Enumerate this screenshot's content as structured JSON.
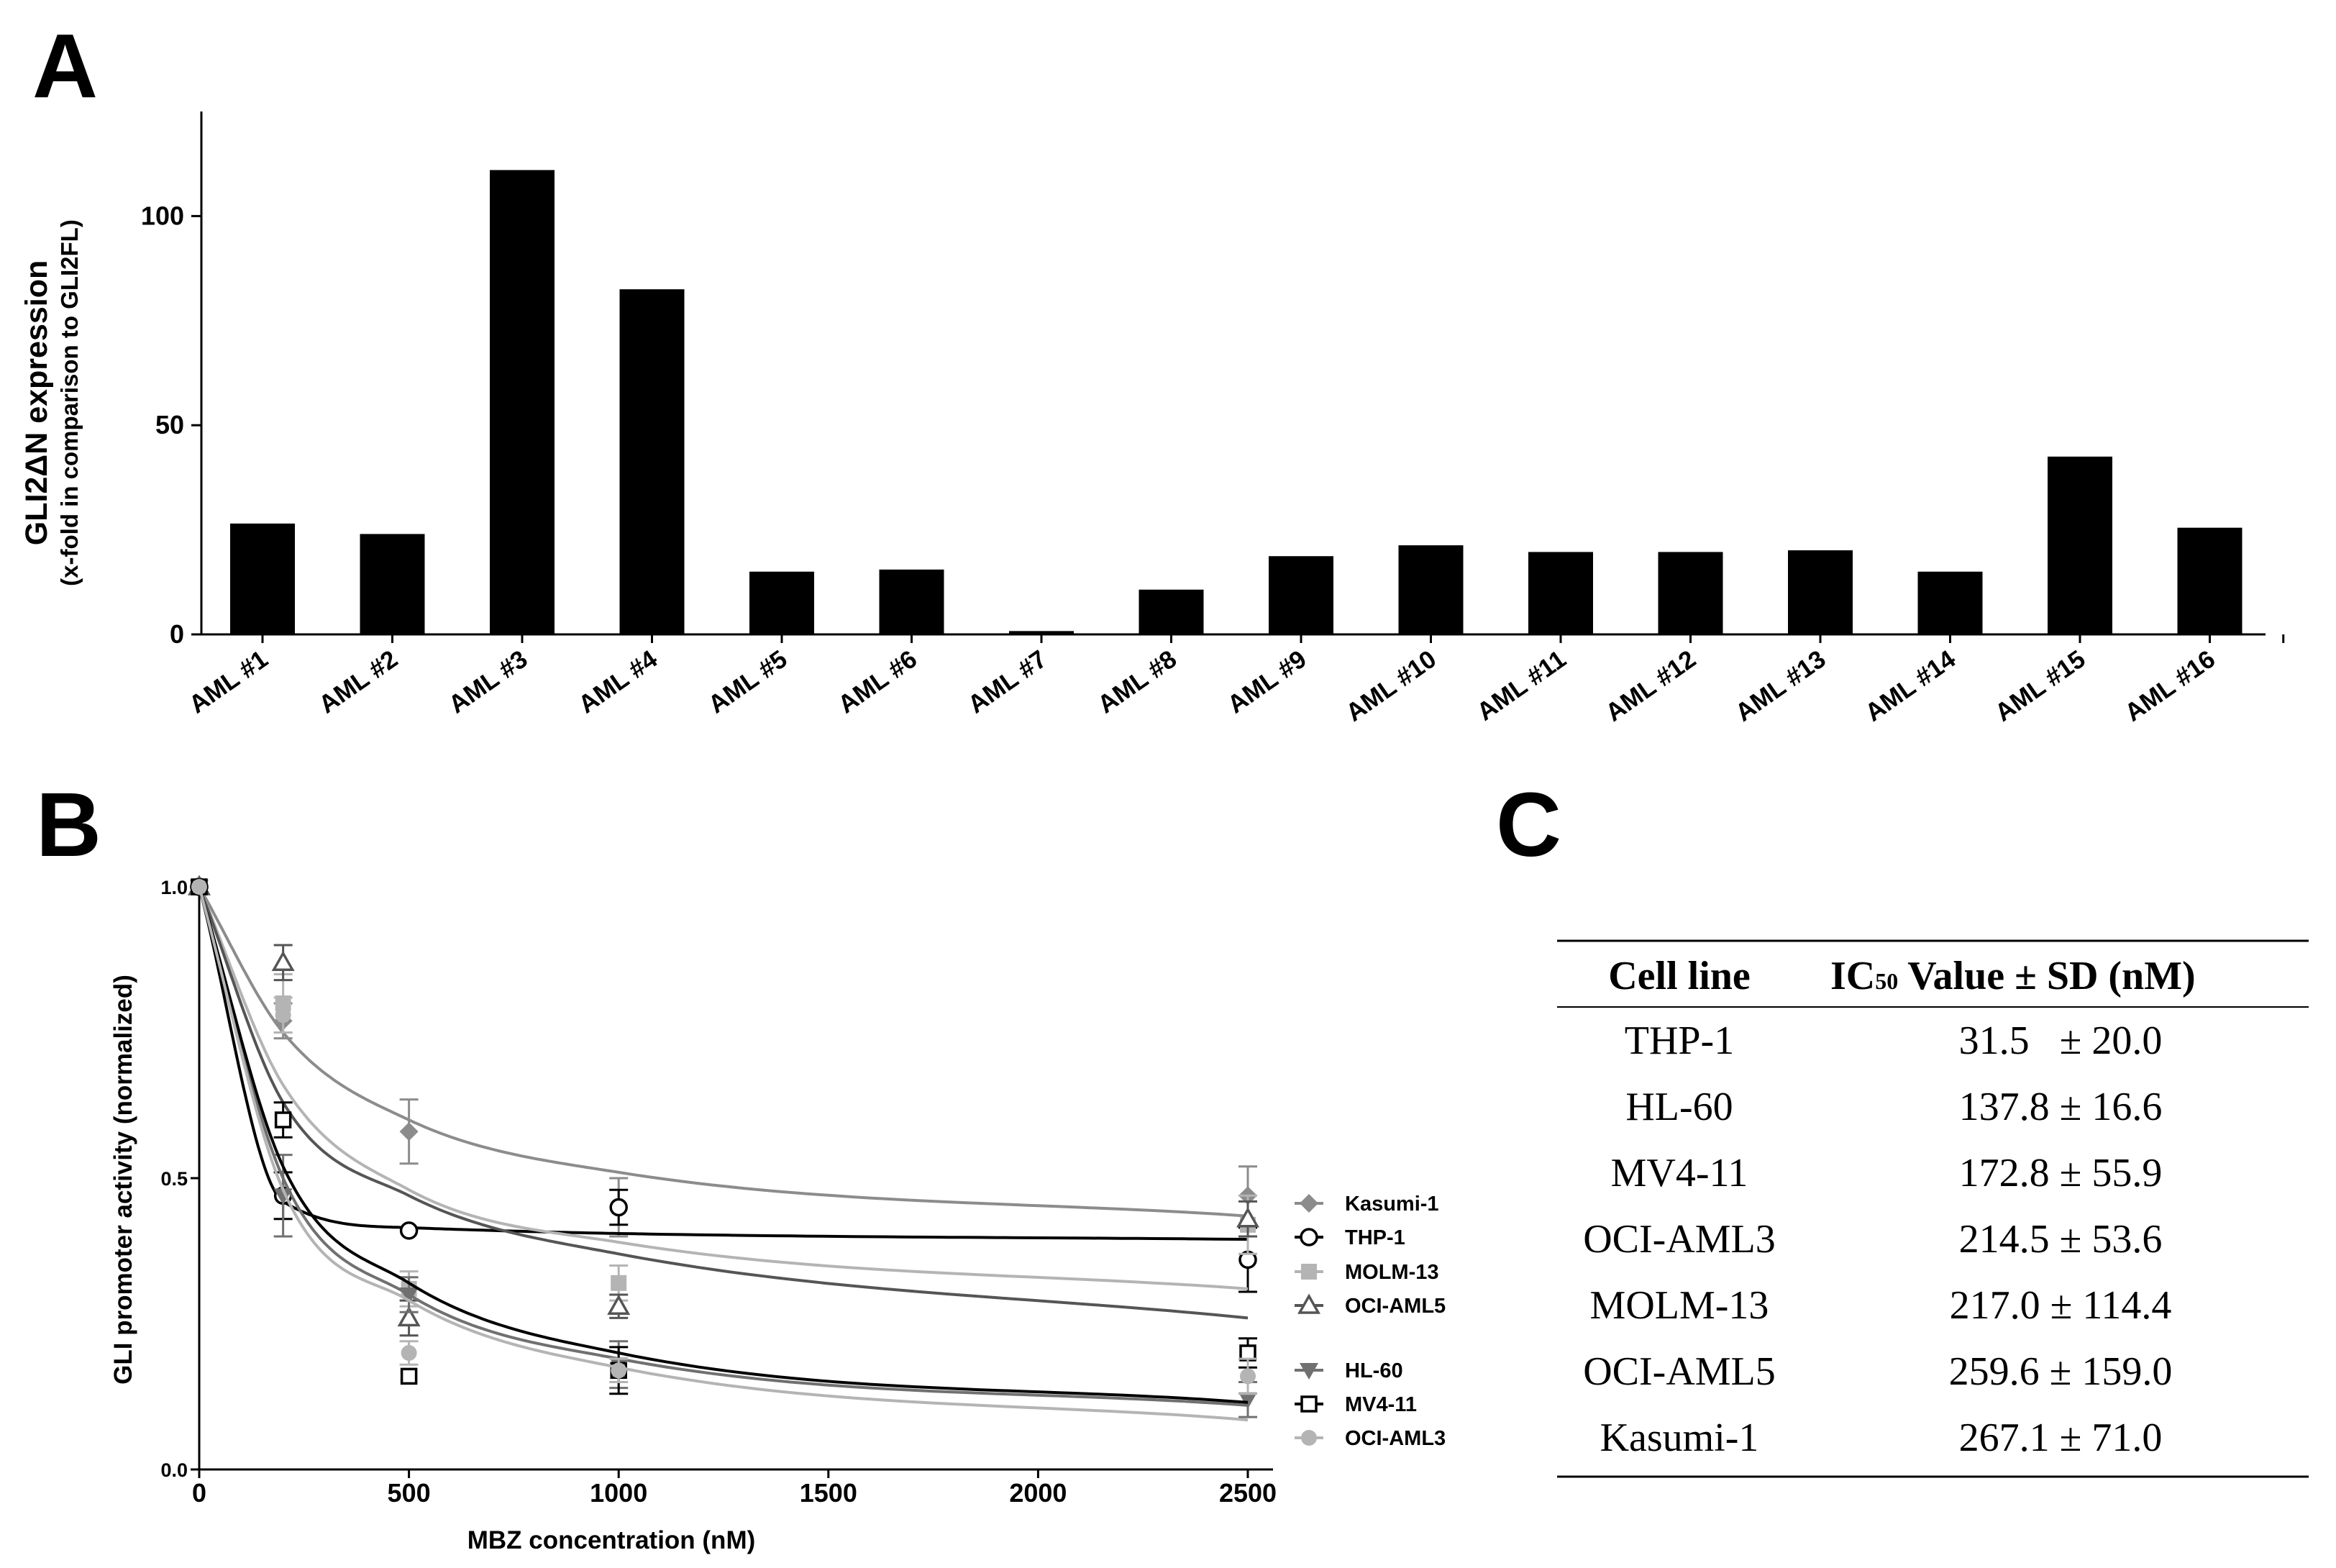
{
  "panels": {
    "a": "A",
    "b": "B",
    "c": "C"
  },
  "chart_data": [
    {
      "type": "bar",
      "title": "",
      "ylabel": "GLI2ΔN expression",
      "ylabel_sub": "(x-fold in comparison to GLI2FL)",
      "xlabel": "",
      "ylim": [
        0,
        125
      ],
      "yticks": [
        0,
        50,
        100
      ],
      "categories": [
        "AML #1",
        "AML #2",
        "AML #3",
        "AML #4",
        "AML #5",
        "AML #6",
        "AML #7",
        "AML #8",
        "AML #9",
        "AML #10",
        "AML #11",
        "AML #12",
        "AML #13",
        "AML #14",
        "AML #15",
        "AML #16"
      ],
      "values": [
        26.5,
        24,
        111,
        82.5,
        15,
        15.5,
        0.8,
        10.7,
        18.7,
        21.3,
        19.7,
        19.7,
        20.1,
        15,
        42.5,
        25.5
      ],
      "bar_color": "#000000"
    },
    {
      "type": "scatter",
      "title": "",
      "xlabel": "MBZ concentration (nM)",
      "ylabel": "GLI promoter activity (normalized)",
      "xlim": [
        0,
        2550
      ],
      "ylim": [
        0,
        1.0
      ],
      "xticks": [
        0,
        500,
        1000,
        1500,
        2000,
        2500
      ],
      "yticks": [
        0.0,
        0.5,
        1.0
      ],
      "ytick_labels": [
        "0.0",
        "0.5",
        "1.0"
      ],
      "x": [
        0,
        200,
        500,
        1000,
        2500
      ],
      "series": [
        {
          "name": "Kasumi-1",
          "marker": "diamond",
          "color": "#8c8c8c",
          "values": [
            1.0,
            0.77,
            0.58,
            0.45,
            0.47
          ],
          "errors": [
            0,
            0.03,
            0.055,
            0.05,
            0.05
          ],
          "fit": [
            1.0,
            0.75,
            0.6,
            0.51,
            0.435
          ]
        },
        {
          "name": "THP-1",
          "marker": "circle-open",
          "color": "#000000",
          "values": [
            1.0,
            0.47,
            0.41,
            0.45,
            0.36
          ],
          "errors": [
            0,
            0.04,
            0,
            0.03,
            0.055
          ],
          "fit": [
            1.0,
            0.46,
            0.415,
            0.405,
            0.395
          ]
        },
        {
          "name": "MOLM-13",
          "marker": "square",
          "color": "#b4b4b4",
          "values": [
            1.0,
            0.8,
            0.31,
            0.32,
            0.42
          ],
          "errors": [
            0,
            0.05,
            0.03,
            0.03,
            0.05
          ],
          "fit": [
            1.0,
            0.66,
            0.48,
            0.39,
            0.31
          ]
        },
        {
          "name": "OCI-AML5",
          "marker": "triangle-open",
          "color": "#555555",
          "values": [
            1.0,
            0.87,
            0.26,
            0.28,
            0.43
          ],
          "errors": [
            0,
            0.03,
            0.03,
            0.02,
            0.03
          ],
          "fit": [
            1.0,
            0.63,
            0.47,
            0.37,
            0.26
          ]
        },
        {
          "name": "HL-60",
          "marker": "triangle-down",
          "color": "#707070",
          "values": [
            1.0,
            0.47,
            0.3,
            0.18,
            0.12
          ],
          "errors": [
            0,
            0.07,
            0.03,
            0.04,
            0.03
          ],
          "fit": [
            1.0,
            0.5,
            0.3,
            0.19,
            0.11
          ]
        },
        {
          "name": "MV4-11",
          "marker": "square-open",
          "color": "#000000",
          "values": [
            1.0,
            0.6,
            0.16,
            0.17,
            0.2
          ],
          "errors": [
            0,
            0.03,
            0,
            0.04,
            0.025
          ],
          "fit": [
            1.0,
            0.52,
            0.32,
            0.2,
            0.115
          ]
        },
        {
          "name": "OCI-AML3",
          "marker": "circle",
          "color": "#b4b4b4",
          "values": [
            1.0,
            0.78,
            0.2,
            0.17,
            0.16
          ],
          "errors": [
            0,
            0.03,
            0.02,
            0.02,
            0.03
          ],
          "fit": [
            1.0,
            0.48,
            0.29,
            0.175,
            0.085
          ]
        }
      ]
    },
    {
      "type": "table",
      "columns": [
        "Cell line",
        "IC50 Value ± SD (nM)"
      ],
      "header": {
        "cell_line": "Cell line",
        "ic": "IC",
        "ic_sub": "50",
        "value": " Value ± SD (nM)"
      },
      "rows": [
        {
          "line": "THP-1",
          "value": "31.5   ± 20.0"
        },
        {
          "line": "HL-60",
          "value": "137.8 ± 16.6"
        },
        {
          "line": "MV4-11",
          "value": "172.8 ± 55.9"
        },
        {
          "line": "OCI-AML3",
          "value": "214.5 ± 53.6"
        },
        {
          "line": "MOLM-13",
          "value": "217.0 ± 114.4"
        },
        {
          "line": "OCI-AML5",
          "value": "259.6 ± 159.0"
        },
        {
          "line": "Kasumi-1",
          "value": "267.1 ± 71.0"
        }
      ]
    }
  ]
}
